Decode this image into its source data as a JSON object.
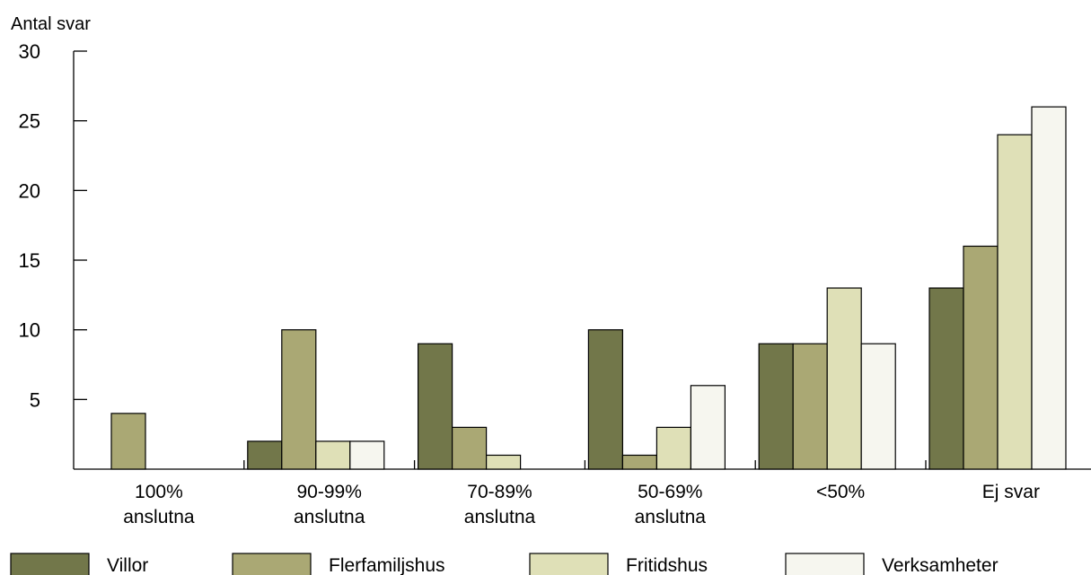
{
  "chart_data": {
    "type": "bar",
    "title": "",
    "xlabel": "",
    "ylabel": "Antal svar",
    "ylim": [
      0,
      30
    ],
    "yticks": [
      5,
      10,
      15,
      20,
      25,
      30
    ],
    "categories": [
      [
        "100%",
        "anslutna"
      ],
      [
        "90-99%",
        "anslutna"
      ],
      [
        "70-89%",
        "anslutna"
      ],
      [
        "50-69%",
        "anslutna"
      ],
      [
        "<50%"
      ],
      [
        "Ej svar"
      ]
    ],
    "series": [
      {
        "name": "Villor",
        "color": "#72774a",
        "values": [
          0,
          2,
          9,
          10,
          9,
          13
        ]
      },
      {
        "name": "Flerfamiljshus",
        "color": "#aaa874",
        "values": [
          4,
          10,
          3,
          1,
          9,
          16
        ]
      },
      {
        "name": "Fritidshus",
        "color": "#dfe0b7",
        "values": [
          0,
          2,
          1,
          3,
          13,
          24
        ]
      },
      {
        "name": "Verksamheter",
        "color": "#f6f6ef",
        "values": [
          0,
          2,
          0,
          6,
          9,
          26
        ]
      }
    ],
    "grid": false,
    "legend": "bottom"
  }
}
